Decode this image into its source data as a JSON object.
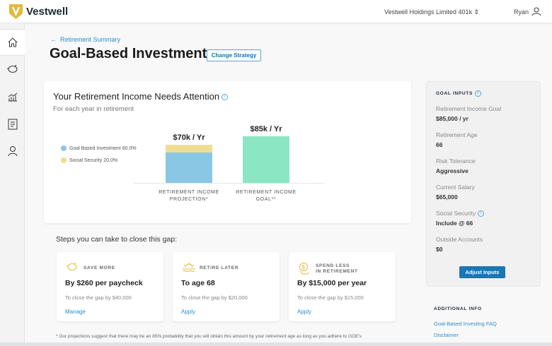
{
  "header": {
    "brand": "Vestwell",
    "plan": "Vestwell Holdings Limited 401k",
    "user": "Ryan"
  },
  "sidebar": {
    "items": [
      {
        "icon": "home-icon"
      },
      {
        "icon": "piggy-bank-icon"
      },
      {
        "icon": "chart-icon"
      },
      {
        "icon": "document-icon"
      },
      {
        "icon": "user-icon"
      }
    ]
  },
  "page": {
    "back": "Retirement Summary",
    "title": "Goal-Based Investment",
    "change": "Change Strategy"
  },
  "income_card": {
    "title": "Your Retirement Income Needs Attention",
    "subtitle": "For each year in retirement"
  },
  "chart_data": {
    "type": "bar",
    "categories": [
      "RETIREMENT INCOME PROJECTION*",
      "RETIREMENT INCOME GOAL**"
    ],
    "category_lines": [
      [
        "RETIREMENT INCOME",
        "PROJECTION*"
      ],
      [
        "RETIREMENT INCOME",
        "GOAL**"
      ]
    ],
    "data_labels": [
      "$70k / Yr",
      "$85k / Yr"
    ],
    "totals": [
      70,
      85
    ],
    "series": [
      {
        "name": "Goal Based Investment 80.0%",
        "values": [
          56,
          0
        ],
        "color": "#8ac7e4"
      },
      {
        "name": "Social Security 20.0%",
        "values": [
          14,
          0
        ],
        "color": "#f0dd95"
      },
      {
        "name": "",
        "values": [
          0,
          85
        ],
        "color": "#8be6c4"
      }
    ],
    "legend_position": "left"
  },
  "steps": {
    "heading": "Steps you can take to close this gap:",
    "cards": [
      {
        "icon": "piggy-bank-icon",
        "label": [
          "SAVE MORE"
        ],
        "main": "By $260 per paycheck",
        "sub": "To close the gap by $40,000",
        "link": "Manage"
      },
      {
        "icon": "sunset-icon",
        "label": [
          "RETIRE LATER"
        ],
        "main": "To age 68",
        "sub": "To close the gap by $20,000",
        "link": "Apply"
      },
      {
        "icon": "dollar-down-icon",
        "label": [
          "SPEND LESS",
          "IN RETIREMENT"
        ],
        "main": "By $15,000 per year",
        "sub": "To close the gap by $15,000",
        "link": "Apply"
      }
    ]
  },
  "footnote": "* Our projections suggest that there may be an 85% probability that you will obtain this amount by your retirement age as long as you adhere to GOE's",
  "goal_inputs": {
    "heading": "GOAL INPUTS",
    "items": [
      {
        "label": "Retirement Income Goal",
        "value": "$85,000 / yr"
      },
      {
        "label": "Retirement Age",
        "value": "66"
      },
      {
        "label": "Risk Tolerance",
        "value": "Aggressive"
      },
      {
        "label": "Current Salary",
        "value": "$65,000"
      },
      {
        "label": "Social Security",
        "value": "Include @ 66"
      },
      {
        "label": "Outside Accounts",
        "value": "$0"
      }
    ],
    "button": "Adjust Inputs"
  },
  "additional": {
    "heading": "ADDITIONAL INFO",
    "links": [
      "Goal-Based Investing FAQ",
      "Disclaimer"
    ]
  },
  "colors": {
    "accent": "#1a77b3",
    "link": "#2a8fc9",
    "logo": "#e2b93b"
  }
}
